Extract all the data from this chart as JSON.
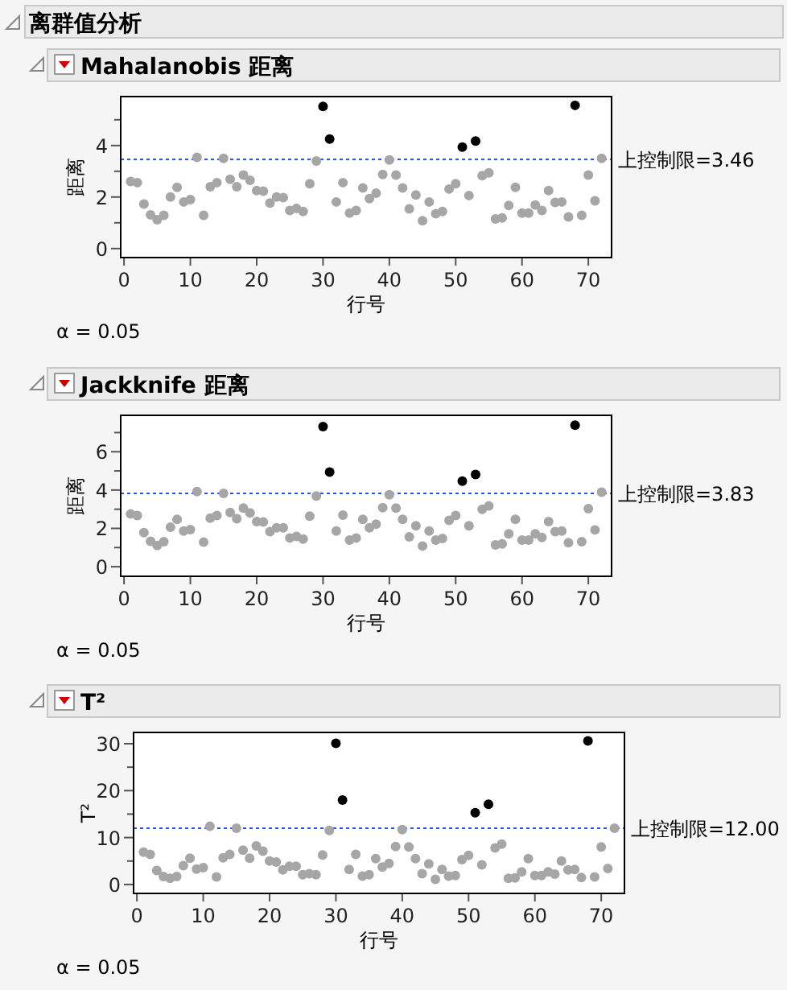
{
  "chart_data": [
    {
      "type": "scatter",
      "title": "离群值分析",
      "subtitle": "Mahalanobis 距离",
      "xlabel": "行号",
      "ylabel": "距离",
      "marker": "circle",
      "xlim": [
        -0.5,
        73.5
      ],
      "xticks": [
        0,
        10,
        20,
        30,
        40,
        50,
        60,
        70
      ],
      "ylim": [
        -0.35,
        5.9
      ],
      "yticks": [
        0,
        {
          "value": 1,
          "label": null
        },
        2,
        {
          "value": 3,
          "label": null
        },
        4,
        {
          "value": 5,
          "label": null
        }
      ],
      "ref_lines": [
        {
          "axis": "y",
          "value": 3.46,
          "label": "上控制限=3.46",
          "color": "#2255ee",
          "line_style": "dotted"
        }
      ],
      "annotations": [
        "α = 0.05"
      ],
      "series": [
        {
          "color": "#a6a6a6",
          "x": [
            1,
            2,
            3,
            4,
            5,
            6,
            7,
            8,
            9,
            10,
            11,
            12,
            13,
            14,
            15,
            16,
            17,
            18,
            19,
            20,
            21,
            22,
            23,
            24,
            25,
            26,
            27,
            28,
            29,
            32,
            33,
            34,
            35,
            36,
            37,
            38,
            39,
            40,
            41,
            42,
            43,
            44,
            45,
            46,
            47,
            48,
            49,
            50,
            52,
            54,
            55,
            56,
            57,
            58,
            59,
            60,
            61,
            62,
            63,
            64,
            65,
            66,
            67,
            69,
            70,
            71,
            72
          ],
          "values": [
            2.6,
            2.56,
            1.73,
            1.31,
            1.12,
            1.29,
            2.0,
            2.38,
            1.81,
            1.9,
            3.54,
            1.29,
            2.4,
            2.56,
            3.5,
            2.69,
            2.4,
            2.85,
            2.65,
            2.25,
            2.23,
            1.77,
            2.0,
            1.98,
            1.48,
            1.56,
            1.44,
            2.52,
            3.4,
            1.81,
            2.56,
            1.38,
            1.48,
            2.35,
            1.94,
            2.15,
            2.88,
            3.44,
            2.85,
            2.35,
            1.54,
            2.08,
            1.08,
            1.81,
            1.35,
            1.44,
            2.31,
            2.52,
            2.06,
            2.83,
            2.94,
            1.15,
            1.19,
            1.67,
            2.38,
            1.38,
            1.38,
            1.69,
            1.48,
            2.25,
            1.79,
            1.81,
            1.23,
            1.29,
            2.85,
            1.85,
            3.5
          ]
        },
        {
          "color": "#000000",
          "x": [
            30,
            31,
            51,
            53,
            68
          ],
          "values": [
            5.52,
            4.25,
            3.94,
            4.17,
            5.56
          ]
        }
      ]
    },
    {
      "type": "scatter",
      "title": "Jackknife 距离",
      "xlabel": "行号",
      "ylabel": "距离",
      "marker": "circle",
      "xlim": [
        -0.5,
        73.5
      ],
      "xticks": [
        0,
        10,
        20,
        30,
        40,
        50,
        60,
        70
      ],
      "ylim": [
        -0.5,
        7.9
      ],
      "yticks": [
        0,
        {
          "value": 1,
          "label": null
        },
        2,
        {
          "value": 3,
          "label": null
        },
        4,
        {
          "value": 5,
          "label": null
        },
        6,
        {
          "value": 7,
          "label": null
        }
      ],
      "ref_lines": [
        {
          "axis": "y",
          "value": 3.83,
          "label": "上控制限=3.83",
          "color": "#2255ee",
          "line_style": "dotted"
        }
      ],
      "annotations": [
        "α = 0.05"
      ],
      "series": [
        {
          "color": "#a6a6a6",
          "x": [
            1,
            2,
            3,
            4,
            5,
            6,
            7,
            8,
            9,
            10,
            11,
            12,
            13,
            14,
            15,
            16,
            17,
            18,
            19,
            20,
            21,
            22,
            23,
            24,
            25,
            26,
            27,
            28,
            29,
            32,
            33,
            34,
            35,
            36,
            37,
            38,
            39,
            40,
            41,
            42,
            43,
            44,
            45,
            46,
            47,
            48,
            49,
            50,
            52,
            54,
            55,
            56,
            57,
            58,
            59,
            60,
            61,
            62,
            63,
            64,
            65,
            66,
            67,
            69,
            70,
            71,
            72
          ],
          "values": [
            2.75,
            2.67,
            1.78,
            1.33,
            1.11,
            1.31,
            2.06,
            2.47,
            1.86,
            1.94,
            3.92,
            1.28,
            2.53,
            2.67,
            3.83,
            2.83,
            2.5,
            3.06,
            2.81,
            2.36,
            2.33,
            1.83,
            2.03,
            2.03,
            1.5,
            1.58,
            1.44,
            2.64,
            3.69,
            1.86,
            2.69,
            1.39,
            1.5,
            2.47,
            2.03,
            2.22,
            3.08,
            3.75,
            3.06,
            2.47,
            1.56,
            2.14,
            1.08,
            1.86,
            1.39,
            1.47,
            2.42,
            2.67,
            2.14,
            3.0,
            3.17,
            1.14,
            1.19,
            1.72,
            2.47,
            1.39,
            1.39,
            1.72,
            1.53,
            2.36,
            1.83,
            1.86,
            1.25,
            1.31,
            3.03,
            1.92,
            3.89
          ]
        },
        {
          "color": "#000000",
          "x": [
            30,
            31,
            51,
            53,
            68
          ],
          "values": [
            7.31,
            4.94,
            4.47,
            4.81,
            7.39
          ]
        }
      ]
    },
    {
      "type": "scatter",
      "title": "T²",
      "xlabel": "行号",
      "ylabel": "T²",
      "marker": "circle",
      "xlim": [
        -0.5,
        73.5
      ],
      "xticks": [
        0,
        10,
        20,
        30,
        40,
        50,
        60,
        70
      ],
      "ylim": [
        -1.9,
        32.4
      ],
      "yticks": [
        0,
        {
          "value": 5,
          "label": null
        },
        10,
        {
          "value": 15,
          "label": null
        },
        20,
        {
          "value": 25,
          "label": null
        },
        30
      ],
      "ref_lines": [
        {
          "axis": "y",
          "value": 12.0,
          "label": "上控制限=12.00",
          "color": "#2255ee",
          "line_style": "dotted"
        }
      ],
      "annotations": [
        "α = 0.05"
      ],
      "series": [
        {
          "color": "#a6a6a6",
          "x": [
            1,
            2,
            3,
            4,
            5,
            6,
            7,
            8,
            9,
            10,
            11,
            12,
            13,
            14,
            15,
            16,
            17,
            18,
            19,
            20,
            21,
            22,
            23,
            24,
            25,
            26,
            27,
            28,
            29,
            32,
            33,
            34,
            35,
            36,
            37,
            38,
            39,
            40,
            41,
            42,
            43,
            44,
            45,
            46,
            47,
            48,
            49,
            50,
            52,
            54,
            55,
            56,
            57,
            58,
            59,
            60,
            61,
            62,
            63,
            64,
            65,
            66,
            67,
            69,
            70,
            71,
            72
          ],
          "values": [
            6.9,
            6.4,
            3.0,
            1.7,
            1.3,
            1.7,
            4.0,
            5.6,
            3.3,
            3.6,
            12.4,
            1.6,
            5.7,
            6.4,
            12.0,
            7.3,
            5.6,
            8.2,
            7.1,
            5.0,
            4.8,
            3.1,
            3.9,
            3.9,
            2.1,
            2.3,
            2.1,
            6.3,
            11.5,
            3.2,
            6.4,
            1.8,
            2.1,
            5.5,
            3.7,
            4.5,
            8.1,
            11.7,
            8.0,
            5.5,
            2.3,
            4.4,
            1.1,
            3.2,
            1.8,
            1.9,
            5.3,
            6.2,
            4.2,
            7.8,
            8.6,
            1.3,
            1.4,
            2.7,
            5.5,
            1.9,
            1.9,
            2.7,
            2.2,
            5.0,
            3.1,
            3.2,
            1.5,
            1.6,
            8.0,
            3.4,
            12.0
          ]
        },
        {
          "color": "#000000",
          "x": [
            30,
            31,
            51,
            53,
            68
          ],
          "values": [
            30.1,
            18.0,
            15.3,
            17.1,
            30.6
          ]
        }
      ]
    }
  ]
}
